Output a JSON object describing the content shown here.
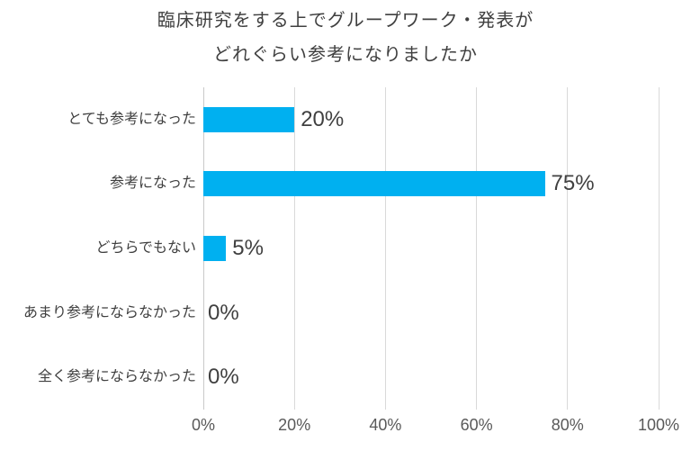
{
  "title": {
    "line1": "臨床研究をする上でグループワーク・発表が",
    "line2": "どれぐらい参考になりましたか"
  },
  "chart_data": {
    "type": "bar",
    "orientation": "horizontal",
    "title": "臨床研究をする上でグループワーク・発表が どれぐらい参考になりましたか",
    "categories": [
      "とても参考になった",
      "参考になった",
      "どちらでもない",
      "あまり参考にならなかった",
      "全く参考にならなかった"
    ],
    "values": [
      20,
      75,
      5,
      0,
      0
    ],
    "data_labels": [
      "20%",
      "75%",
      "5%",
      "0%",
      "0%"
    ],
    "x_ticks": [
      "0%",
      "20%",
      "40%",
      "60%",
      "80%",
      "100%"
    ],
    "xlim": [
      0,
      100
    ],
    "grid": true,
    "legend": "none",
    "value_unit": "%"
  },
  "colors": {
    "background": "#FFFFFF",
    "bar": "#00B0F0",
    "gridline": "#D9D9D9",
    "axis_line": "#C9C9C9",
    "title_text": "#404040",
    "category_text": "#404040",
    "data_label_text": "#404040",
    "tick_text": "#595959"
  }
}
